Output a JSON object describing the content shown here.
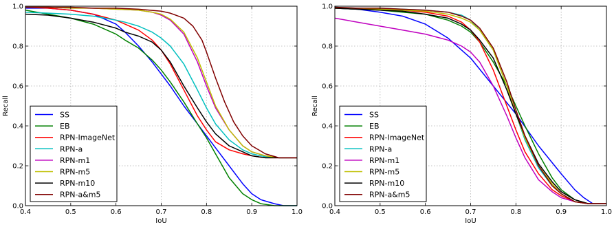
{
  "chart_data": [
    {
      "type": "line",
      "xlabel": "IoU",
      "ylabel": "Recall",
      "xlim": [
        0.4,
        1.0
      ],
      "ylim": [
        0.0,
        1.0
      ],
      "xticks": [
        "0.4",
        "0.5",
        "0.6",
        "0.7",
        "0.8",
        "0.9",
        "1.0"
      ],
      "yticks": [
        "0.0",
        "0.2",
        "0.4",
        "0.6",
        "0.8",
        "1.0"
      ],
      "grid": true,
      "legend_position": "lower-left",
      "series": [
        {
          "name": "SS",
          "color": "#0000ff",
          "x": [
            0.4,
            0.45,
            0.5,
            0.55,
            0.6,
            0.62,
            0.65,
            0.68,
            0.7,
            0.72,
            0.75,
            0.78,
            0.8,
            0.82,
            0.85,
            0.88,
            0.9,
            0.92,
            0.95,
            0.97,
            1.0
          ],
          "y": [
            0.99,
            0.99,
            0.98,
            0.96,
            0.91,
            0.87,
            0.8,
            0.72,
            0.66,
            0.6,
            0.5,
            0.41,
            0.35,
            0.29,
            0.2,
            0.11,
            0.06,
            0.03,
            0.01,
            0.0,
            0.0
          ]
        },
        {
          "name": "EB",
          "color": "#008000",
          "x": [
            0.4,
            0.45,
            0.5,
            0.55,
            0.6,
            0.62,
            0.65,
            0.68,
            0.7,
            0.72,
            0.75,
            0.78,
            0.8,
            0.82,
            0.85,
            0.88,
            0.9,
            0.92,
            0.95,
            0.97,
            1.0
          ],
          "y": [
            0.98,
            0.96,
            0.94,
            0.91,
            0.86,
            0.83,
            0.79,
            0.73,
            0.68,
            0.62,
            0.52,
            0.41,
            0.34,
            0.26,
            0.14,
            0.06,
            0.03,
            0.01,
            0.0,
            0.0,
            0.0
          ]
        },
        {
          "name": "RPN-ImageNet",
          "color": "#ff0000",
          "x": [
            0.4,
            0.45,
            0.5,
            0.55,
            0.6,
            0.62,
            0.65,
            0.68,
            0.7,
            0.72,
            0.75,
            0.78,
            0.8,
            0.82,
            0.85,
            0.88,
            0.9,
            0.93,
            0.96,
            1.0
          ],
          "y": [
            0.995,
            0.99,
            0.98,
            0.96,
            0.93,
            0.91,
            0.88,
            0.83,
            0.78,
            0.71,
            0.58,
            0.45,
            0.38,
            0.32,
            0.28,
            0.26,
            0.25,
            0.24,
            0.24,
            0.24
          ]
        },
        {
          "name": "RPN-a",
          "color": "#00bfbf",
          "x": [
            0.4,
            0.45,
            0.5,
            0.55,
            0.6,
            0.62,
            0.65,
            0.68,
            0.7,
            0.72,
            0.75,
            0.78,
            0.8,
            0.82,
            0.85,
            0.88,
            0.9,
            0.93,
            0.96,
            1.0
          ],
          "y": [
            0.97,
            0.965,
            0.96,
            0.95,
            0.93,
            0.92,
            0.9,
            0.87,
            0.84,
            0.8,
            0.71,
            0.58,
            0.49,
            0.41,
            0.33,
            0.28,
            0.26,
            0.245,
            0.24,
            0.24
          ]
        },
        {
          "name": "RPN-m1",
          "color": "#bf00bf",
          "x": [
            0.4,
            0.45,
            0.5,
            0.55,
            0.6,
            0.65,
            0.68,
            0.7,
            0.72,
            0.75,
            0.78,
            0.8,
            0.82,
            0.85,
            0.88,
            0.9,
            0.93,
            0.96,
            1.0
          ],
          "y": [
            0.995,
            0.995,
            0.99,
            0.99,
            0.985,
            0.98,
            0.97,
            0.955,
            0.93,
            0.86,
            0.72,
            0.6,
            0.49,
            0.38,
            0.3,
            0.27,
            0.25,
            0.24,
            0.24
          ]
        },
        {
          "name": "RPN-m5",
          "color": "#bfbf00",
          "x": [
            0.4,
            0.45,
            0.5,
            0.55,
            0.6,
            0.65,
            0.68,
            0.7,
            0.72,
            0.75,
            0.78,
            0.8,
            0.82,
            0.85,
            0.88,
            0.9,
            0.93,
            0.96,
            1.0
          ],
          "y": [
            0.995,
            0.995,
            0.99,
            0.99,
            0.985,
            0.98,
            0.97,
            0.96,
            0.935,
            0.87,
            0.74,
            0.62,
            0.5,
            0.38,
            0.3,
            0.27,
            0.25,
            0.24,
            0.24
          ]
        },
        {
          "name": "RPN-m10",
          "color": "#000000",
          "x": [
            0.4,
            0.45,
            0.5,
            0.55,
            0.6,
            0.62,
            0.65,
            0.68,
            0.7,
            0.72,
            0.75,
            0.78,
            0.8,
            0.82,
            0.85,
            0.88,
            0.9,
            0.93,
            0.96,
            1.0
          ],
          "y": [
            0.96,
            0.955,
            0.94,
            0.92,
            0.89,
            0.87,
            0.85,
            0.82,
            0.78,
            0.72,
            0.6,
            0.49,
            0.42,
            0.36,
            0.3,
            0.27,
            0.25,
            0.24,
            0.24,
            0.24
          ]
        },
        {
          "name": "RPN-a&m5",
          "color": "#800000",
          "x": [
            0.4,
            0.45,
            0.5,
            0.55,
            0.6,
            0.65,
            0.7,
            0.72,
            0.75,
            0.77,
            0.79,
            0.8,
            0.82,
            0.84,
            0.86,
            0.88,
            0.9,
            0.93,
            0.96,
            1.0
          ],
          "y": [
            0.995,
            0.995,
            0.995,
            0.99,
            0.99,
            0.985,
            0.975,
            0.965,
            0.94,
            0.9,
            0.83,
            0.77,
            0.64,
            0.52,
            0.42,
            0.35,
            0.3,
            0.26,
            0.24,
            0.24
          ]
        }
      ]
    },
    {
      "type": "line",
      "xlabel": "IoU",
      "ylabel": "Recall",
      "xlim": [
        0.4,
        1.0
      ],
      "ylim": [
        0.0,
        1.0
      ],
      "xticks": [
        "0.4",
        "0.5",
        "0.6",
        "0.7",
        "0.8",
        "0.9",
        "1.0"
      ],
      "yticks": [
        "0.0",
        "0.2",
        "0.4",
        "0.6",
        "0.8",
        "1.0"
      ],
      "grid": true,
      "legend_position": "lower-left",
      "series": [
        {
          "name": "SS",
          "color": "#0000ff",
          "x": [
            0.4,
            0.45,
            0.5,
            0.55,
            0.6,
            0.65,
            0.7,
            0.75,
            0.8,
            0.85,
            0.9,
            0.93,
            0.95,
            0.97,
            1.0
          ],
          "y": [
            0.99,
            0.985,
            0.97,
            0.95,
            0.91,
            0.84,
            0.74,
            0.6,
            0.46,
            0.3,
            0.16,
            0.08,
            0.04,
            0.01,
            0.01
          ]
        },
        {
          "name": "EB",
          "color": "#008000",
          "x": [
            0.4,
            0.45,
            0.5,
            0.55,
            0.6,
            0.65,
            0.68,
            0.7,
            0.72,
            0.75,
            0.78,
            0.8,
            0.82,
            0.85,
            0.88,
            0.9,
            0.93,
            0.96,
            1.0
          ],
          "y": [
            0.99,
            0.985,
            0.98,
            0.97,
            0.96,
            0.93,
            0.9,
            0.87,
            0.82,
            0.72,
            0.6,
            0.5,
            0.4,
            0.26,
            0.14,
            0.08,
            0.03,
            0.01,
            0.01
          ]
        },
        {
          "name": "RPN-ImageNet",
          "color": "#ff0000",
          "x": [
            0.4,
            0.45,
            0.5,
            0.55,
            0.6,
            0.65,
            0.68,
            0.7,
            0.72,
            0.75,
            0.78,
            0.8,
            0.82,
            0.85,
            0.88,
            0.9,
            0.93,
            0.96,
            1.0
          ],
          "y": [
            0.99,
            0.99,
            0.985,
            0.98,
            0.97,
            0.95,
            0.92,
            0.88,
            0.82,
            0.68,
            0.5,
            0.38,
            0.27,
            0.16,
            0.08,
            0.05,
            0.02,
            0.01,
            0.01
          ]
        },
        {
          "name": "RPN-a",
          "color": "#00bfbf",
          "x": [
            0.4,
            0.45,
            0.5,
            0.55,
            0.6,
            0.65,
            0.68,
            0.7,
            0.72,
            0.75,
            0.78,
            0.8,
            0.82,
            0.85,
            0.88,
            0.9,
            0.93,
            0.96,
            1.0
          ],
          "y": [
            0.995,
            0.99,
            0.99,
            0.985,
            0.98,
            0.97,
            0.955,
            0.93,
            0.88,
            0.78,
            0.6,
            0.46,
            0.33,
            0.19,
            0.1,
            0.06,
            0.02,
            0.01,
            0.01
          ]
        },
        {
          "name": "RPN-m1",
          "color": "#bf00bf",
          "x": [
            0.4,
            0.45,
            0.5,
            0.55,
            0.6,
            0.65,
            0.68,
            0.7,
            0.72,
            0.75,
            0.78,
            0.8,
            0.82,
            0.85,
            0.88,
            0.9,
            0.93,
            0.96,
            1.0
          ],
          "y": [
            0.94,
            0.92,
            0.9,
            0.88,
            0.86,
            0.83,
            0.8,
            0.77,
            0.72,
            0.6,
            0.45,
            0.34,
            0.24,
            0.13,
            0.07,
            0.04,
            0.02,
            0.01,
            0.01
          ]
        },
        {
          "name": "RPN-m5",
          "color": "#bfbf00",
          "x": [
            0.4,
            0.45,
            0.5,
            0.55,
            0.6,
            0.65,
            0.68,
            0.7,
            0.72,
            0.75,
            0.78,
            0.8,
            0.82,
            0.85,
            0.88,
            0.9,
            0.93,
            0.96,
            1.0
          ],
          "y": [
            0.99,
            0.99,
            0.985,
            0.98,
            0.975,
            0.96,
            0.94,
            0.92,
            0.88,
            0.78,
            0.6,
            0.46,
            0.34,
            0.2,
            0.11,
            0.06,
            0.02,
            0.01,
            0.01
          ]
        },
        {
          "name": "RPN-m10",
          "color": "#000000",
          "x": [
            0.4,
            0.45,
            0.5,
            0.55,
            0.6,
            0.65,
            0.68,
            0.7,
            0.72,
            0.75,
            0.78,
            0.8,
            0.82,
            0.85,
            0.88,
            0.9,
            0.93,
            0.96,
            1.0
          ],
          "y": [
            0.99,
            0.985,
            0.98,
            0.975,
            0.96,
            0.94,
            0.91,
            0.88,
            0.83,
            0.74,
            0.58,
            0.46,
            0.35,
            0.21,
            0.12,
            0.07,
            0.03,
            0.01,
            0.01
          ]
        },
        {
          "name": "RPN-a&m5",
          "color": "#800000",
          "x": [
            0.4,
            0.45,
            0.5,
            0.55,
            0.6,
            0.65,
            0.68,
            0.7,
            0.72,
            0.75,
            0.78,
            0.8,
            0.82,
            0.85,
            0.88,
            0.9,
            0.93,
            0.96,
            1.0
          ],
          "y": [
            0.995,
            0.99,
            0.99,
            0.985,
            0.98,
            0.97,
            0.95,
            0.93,
            0.89,
            0.79,
            0.62,
            0.48,
            0.35,
            0.2,
            0.1,
            0.06,
            0.02,
            0.01,
            0.01
          ]
        }
      ]
    }
  ]
}
